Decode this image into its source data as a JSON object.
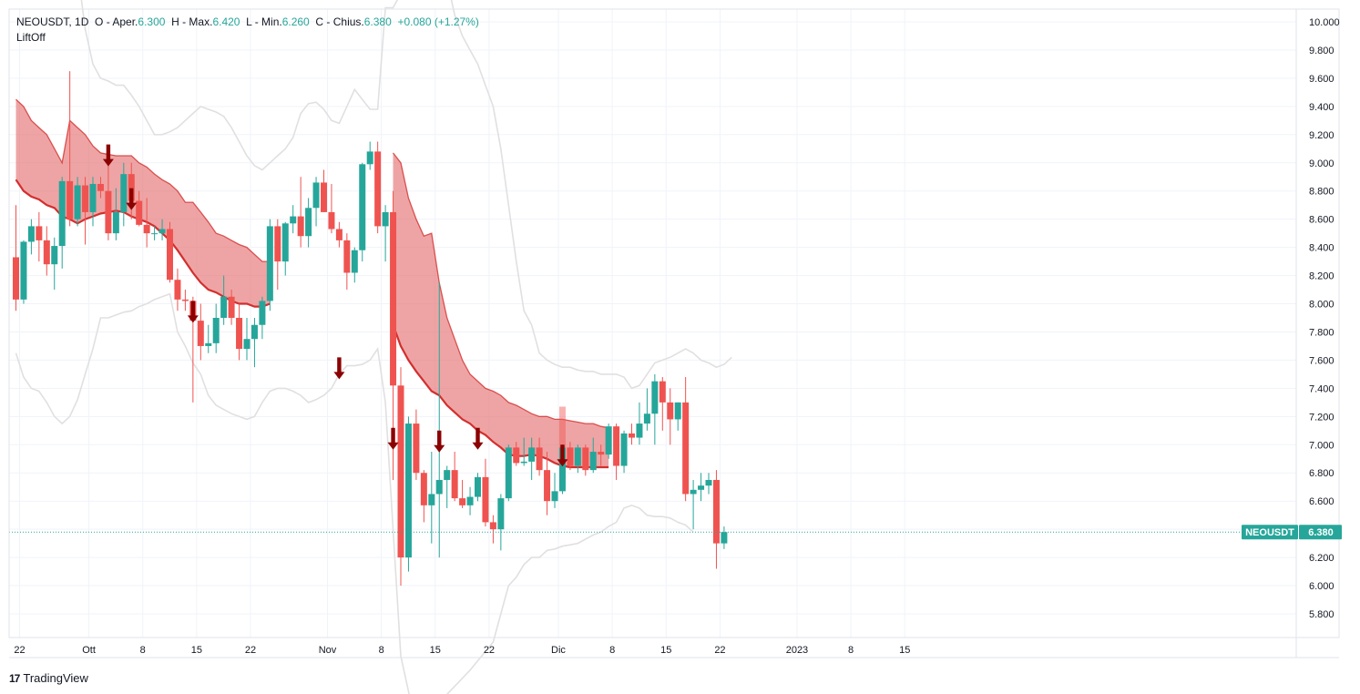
{
  "legend": {
    "symbol": "NEOUSDT",
    "interval": "1D",
    "open_label": "O - Aper.",
    "open": "6.300",
    "high_label": "H - Max.",
    "high": "6.420",
    "low_label": "L - Min.",
    "low": "6.260",
    "close_label": "C - Chius.",
    "close": "6.380",
    "change": "+0.080 (+1.27%)"
  },
  "indicator_name": "LiftOff",
  "footer": {
    "logo": "17",
    "brand": "TradingView"
  },
  "price_tag": {
    "symbol": "NEOUSDT",
    "value": "6.380"
  },
  "colors": {
    "up": "#26a69a",
    "down": "#ef5350",
    "band_fill": "#e57373",
    "band_line": "#d32f2f",
    "arrow": "#8b0000",
    "envelope": "#e0e0e0"
  },
  "chart_data": {
    "type": "candlestick",
    "ylim": [
      5.7,
      10.1
    ],
    "y_ticks": [
      "10.000",
      "9.800",
      "9.600",
      "9.400",
      "9.200",
      "9.000",
      "8.800",
      "8.600",
      "8.400",
      "8.200",
      "8.000",
      "7.800",
      "7.600",
      "7.400",
      "7.200",
      "7.000",
      "6.800",
      "6.600",
      "6.400",
      "6.200",
      "6.000",
      "5.800"
    ],
    "x_ticks": [
      {
        "label": "22",
        "i": 0
      },
      {
        "label": "Ott",
        "i": 9
      },
      {
        "label": "8",
        "i": 16
      },
      {
        "label": "15",
        "i": 23
      },
      {
        "label": "22",
        "i": 30
      },
      {
        "label": "Nov",
        "i": 40
      },
      {
        "label": "8",
        "i": 47
      },
      {
        "label": "15",
        "i": 54
      },
      {
        "label": "22",
        "i": 61
      },
      {
        "label": "Dic",
        "i": 70
      },
      {
        "label": "8",
        "i": 77
      },
      {
        "label": "15",
        "i": 84
      },
      {
        "label": "22",
        "i": 91
      },
      {
        "label": "2023",
        "i": 101
      },
      {
        "label": "8",
        "i": 108
      },
      {
        "label": "15",
        "i": 115
      }
    ],
    "candles": [
      [
        8.33,
        8.7,
        7.95,
        8.03
      ],
      [
        8.03,
        8.45,
        8.0,
        8.44
      ],
      [
        8.44,
        8.6,
        8.35,
        8.55
      ],
      [
        8.55,
        8.65,
        8.3,
        8.45
      ],
      [
        8.45,
        8.55,
        8.2,
        8.28
      ],
      [
        8.28,
        8.47,
        8.1,
        8.41
      ],
      [
        8.41,
        8.9,
        8.25,
        8.87
      ],
      [
        8.87,
        9.65,
        8.55,
        8.6
      ],
      [
        8.6,
        8.9,
        8.55,
        8.84
      ],
      [
        8.84,
        8.9,
        8.42,
        8.65
      ],
      [
        8.65,
        8.9,
        8.55,
        8.85
      ],
      [
        8.85,
        8.9,
        8.75,
        8.8
      ],
      [
        8.8,
        9.0,
        8.45,
        8.5
      ],
      [
        8.5,
        8.82,
        8.45,
        8.65
      ],
      [
        8.65,
        9.0,
        8.55,
        8.92
      ],
      [
        8.92,
        9.0,
        8.6,
        8.73
      ],
      [
        8.73,
        8.8,
        8.55,
        8.56
      ],
      [
        8.56,
        8.75,
        8.4,
        8.5
      ],
      [
        8.5,
        8.55,
        8.45,
        8.5
      ],
      [
        8.5,
        8.6,
        8.45,
        8.53
      ],
      [
        8.53,
        8.58,
        8.15,
        8.17
      ],
      [
        8.17,
        8.25,
        7.95,
        8.03
      ],
      [
        8.03,
        8.1,
        7.95,
        8.02
      ],
      [
        8.02,
        8.05,
        7.3,
        7.88
      ],
      [
        7.88,
        8.0,
        7.6,
        7.7
      ],
      [
        7.7,
        7.85,
        7.65,
        7.72
      ],
      [
        7.72,
        8.0,
        7.65,
        7.9
      ],
      [
        7.9,
        8.2,
        7.85,
        8.05
      ],
      [
        8.05,
        8.1,
        7.85,
        7.9
      ],
      [
        7.9,
        8.0,
        7.6,
        7.68
      ],
      [
        7.68,
        7.9,
        7.6,
        7.75
      ],
      [
        7.75,
        7.9,
        7.55,
        7.85
      ],
      [
        7.85,
        8.05,
        7.75,
        8.02
      ],
      [
        8.02,
        8.6,
        7.95,
        8.55
      ],
      [
        8.55,
        8.6,
        8.1,
        8.3
      ],
      [
        8.3,
        8.58,
        8.2,
        8.57
      ],
      [
        8.57,
        8.7,
        8.5,
        8.62
      ],
      [
        8.62,
        8.9,
        8.4,
        8.48
      ],
      [
        8.48,
        8.75,
        8.4,
        8.68
      ],
      [
        8.68,
        8.9,
        8.55,
        8.86
      ],
      [
        8.86,
        8.95,
        8.65,
        8.65
      ],
      [
        8.65,
        8.85,
        8.5,
        8.53
      ],
      [
        8.53,
        8.58,
        8.4,
        8.45
      ],
      [
        8.45,
        8.5,
        8.1,
        8.22
      ],
      [
        8.22,
        8.4,
        8.15,
        8.38
      ],
      [
        8.38,
        9.0,
        8.3,
        8.99
      ],
      [
        8.99,
        9.15,
        8.95,
        9.08
      ],
      [
        9.08,
        9.15,
        8.5,
        8.55
      ],
      [
        8.55,
        8.7,
        8.3,
        8.65
      ],
      [
        8.65,
        8.8,
        6.75,
        7.42
      ],
      [
        7.42,
        7.55,
        6.0,
        6.2
      ],
      [
        6.2,
        7.2,
        6.1,
        7.15
      ],
      [
        7.15,
        7.25,
        6.75,
        6.8
      ],
      [
        6.8,
        6.82,
        6.45,
        6.57
      ],
      [
        6.57,
        6.95,
        6.3,
        6.65
      ],
      [
        6.65,
        8.15,
        6.2,
        6.75
      ],
      [
        6.75,
        6.85,
        6.55,
        6.82
      ],
      [
        6.82,
        6.95,
        6.6,
        6.62
      ],
      [
        6.62,
        6.75,
        6.55,
        6.57
      ],
      [
        6.57,
        6.7,
        6.5,
        6.63
      ],
      [
        6.63,
        6.8,
        6.6,
        6.77
      ],
      [
        6.77,
        6.9,
        6.42,
        6.45
      ],
      [
        6.45,
        6.5,
        6.3,
        6.4
      ],
      [
        6.4,
        6.65,
        6.25,
        6.62
      ],
      [
        6.62,
        7.0,
        6.6,
        6.98
      ],
      [
        6.98,
        7.02,
        6.85,
        6.87
      ],
      [
        6.87,
        7.05,
        6.85,
        6.88
      ],
      [
        6.88,
        7.05,
        6.75,
        6.98
      ],
      [
        6.98,
        7.05,
        6.78,
        6.82
      ],
      [
        6.82,
        6.95,
        6.5,
        6.6
      ],
      [
        6.6,
        6.8,
        6.55,
        6.67
      ],
      [
        6.67,
        7.0,
        6.65,
        6.98
      ],
      [
        6.98,
        7.02,
        6.82,
        6.85
      ],
      [
        6.85,
        7.0,
        6.8,
        6.98
      ],
      [
        6.98,
        7.0,
        6.78,
        6.82
      ],
      [
        6.82,
        7.05,
        6.8,
        6.95
      ],
      [
        6.95,
        7.0,
        6.85,
        6.93
      ],
      [
        6.93,
        7.15,
        6.9,
        7.13
      ],
      [
        7.13,
        7.15,
        6.75,
        6.85
      ],
      [
        6.85,
        7.1,
        6.8,
        7.08
      ],
      [
        7.08,
        7.15,
        7.0,
        7.05
      ],
      [
        7.05,
        7.3,
        7.0,
        7.15
      ],
      [
        7.15,
        7.4,
        7.1,
        7.22
      ],
      [
        7.22,
        7.5,
        7.0,
        7.45
      ],
      [
        7.45,
        7.48,
        7.1,
        7.3
      ],
      [
        7.3,
        7.4,
        7.0,
        7.18
      ],
      [
        7.18,
        7.3,
        7.1,
        7.3
      ],
      [
        7.3,
        7.48,
        6.6,
        6.65
      ],
      [
        6.65,
        6.75,
        6.4,
        6.68
      ],
      [
        6.68,
        6.8,
        6.6,
        6.71
      ],
      [
        6.71,
        6.8,
        6.65,
        6.75
      ],
      [
        6.75,
        6.82,
        6.12,
        6.3
      ],
      [
        6.3,
        6.42,
        6.26,
        6.38
      ]
    ],
    "band": {
      "start": 0,
      "segments": [
        {
          "from": 0,
          "upper": [
            9.45,
            9.4,
            9.3,
            9.25,
            9.2,
            9.1,
            9.0,
            9.3,
            9.25,
            9.2,
            9.12,
            9.07,
            9.06,
            9.05,
            9.05,
            9.05,
            9.0,
            8.97,
            8.92,
            8.88,
            8.85,
            8.8,
            8.72,
            8.72,
            8.65,
            8.58,
            8.5,
            8.48,
            8.45,
            8.42,
            8.4,
            8.35,
            8.3,
            8.3
          ],
          "lower": [
            8.88,
            8.8,
            8.76,
            8.74,
            8.7,
            8.68,
            8.62,
            8.6,
            8.57,
            8.6,
            8.62,
            8.64,
            8.65,
            8.66,
            8.65,
            8.62,
            8.6,
            8.58,
            8.55,
            8.5,
            8.45,
            8.38,
            8.3,
            8.22,
            8.15,
            8.1,
            8.08,
            8.05,
            8.02,
            8.0,
            8.0,
            7.98,
            7.98,
            8.0
          ]
        },
        {
          "from": 49,
          "upper": [
            9.07,
            9.0,
            8.75,
            8.6,
            8.48,
            8.5,
            8.15,
            7.9,
            7.75,
            7.6,
            7.5,
            7.45,
            7.4,
            7.38,
            7.35,
            7.3,
            7.28,
            7.25,
            7.22,
            7.2,
            7.2,
            7.18,
            7.18,
            7.17,
            7.16,
            7.15,
            7.15,
            7.13,
            7.12
          ],
          "lower": [
            7.85,
            7.7,
            7.6,
            7.52,
            7.45,
            7.38,
            7.35,
            7.28,
            7.23,
            7.18,
            7.15,
            7.1,
            7.07,
            7.02,
            6.98,
            6.93,
            6.92,
            6.92,
            6.93,
            6.92,
            6.9,
            6.87,
            6.85,
            6.84,
            6.84,
            6.84,
            6.84,
            6.84,
            6.84
          ]
        }
      ]
    },
    "envelope": {
      "upper": [
        [
          0,
          10.3
        ],
        [
          7,
          10.8
        ],
        [
          9,
          9.95
        ],
        [
          10,
          9.7
        ],
        [
          11,
          9.6
        ],
        [
          12,
          9.58
        ],
        [
          13,
          9.55
        ],
        [
          14,
          9.55
        ],
        [
          15,
          9.48
        ],
        [
          16,
          9.4
        ],
        [
          17,
          9.3
        ],
        [
          18,
          9.2
        ],
        [
          19,
          9.2
        ],
        [
          20,
          9.22
        ],
        [
          21,
          9.25
        ],
        [
          22,
          9.3
        ],
        [
          23,
          9.35
        ],
        [
          24,
          9.4
        ],
        [
          25,
          9.38
        ],
        [
          26,
          9.36
        ],
        [
          27,
          9.33
        ],
        [
          28,
          9.25
        ],
        [
          29,
          9.15
        ],
        [
          30,
          9.05
        ],
        [
          31,
          8.98
        ],
        [
          32,
          8.95
        ],
        [
          33,
          9.0
        ],
        [
          34,
          9.05
        ],
        [
          35,
          9.1
        ],
        [
          36,
          9.18
        ],
        [
          37,
          9.35
        ],
        [
          38,
          9.42
        ],
        [
          39,
          9.43
        ],
        [
          40,
          9.38
        ],
        [
          41,
          9.3
        ],
        [
          42,
          9.28
        ],
        [
          43,
          9.4
        ],
        [
          44,
          9.52
        ],
        [
          45,
          9.45
        ],
        [
          46,
          9.38
        ],
        [
          47,
          9.38
        ],
        [
          48,
          10.1
        ],
        [
          49,
          10.1
        ],
        [
          50,
          10.2
        ],
        [
          51,
          10.7
        ],
        [
          56,
          10.3
        ],
        [
          57,
          10.05
        ],
        [
          58,
          9.9
        ],
        [
          59,
          9.8
        ],
        [
          60,
          9.7
        ],
        [
          61,
          9.55
        ],
        [
          62,
          9.4
        ],
        [
          63,
          9.1
        ],
        [
          64,
          8.7
        ],
        [
          65,
          8.3
        ],
        [
          66,
          7.95
        ],
        [
          67,
          7.85
        ],
        [
          68,
          7.65
        ],
        [
          69,
          7.6
        ],
        [
          70,
          7.57
        ],
        [
          71,
          7.55
        ],
        [
          72,
          7.55
        ],
        [
          73,
          7.53
        ],
        [
          74,
          7.52
        ],
        [
          75,
          7.52
        ],
        [
          76,
          7.5
        ],
        [
          77,
          7.5
        ],
        [
          78,
          7.5
        ],
        [
          79,
          7.48
        ],
        [
          80,
          7.4
        ],
        [
          81,
          7.42
        ],
        [
          82,
          7.5
        ],
        [
          83,
          7.58
        ],
        [
          84,
          7.6
        ],
        [
          85,
          7.62
        ],
        [
          86,
          7.65
        ],
        [
          87,
          7.68
        ],
        [
          88,
          7.65
        ],
        [
          89,
          7.6
        ],
        [
          90,
          7.58
        ],
        [
          91,
          7.55
        ],
        [
          92,
          7.57
        ],
        [
          93,
          7.62
        ]
      ],
      "lower": [
        [
          0,
          7.65
        ],
        [
          1,
          7.48
        ],
        [
          2,
          7.4
        ],
        [
          3,
          7.38
        ],
        [
          4,
          7.3
        ],
        [
          5,
          7.2
        ],
        [
          6,
          7.15
        ],
        [
          7,
          7.2
        ],
        [
          8,
          7.32
        ],
        [
          9,
          7.5
        ],
        [
          10,
          7.68
        ],
        [
          11,
          7.9
        ],
        [
          12,
          7.9
        ],
        [
          13,
          7.92
        ],
        [
          14,
          7.94
        ],
        [
          15,
          7.95
        ],
        [
          16,
          7.98
        ],
        [
          17,
          8.0
        ],
        [
          18,
          8.03
        ],
        [
          19,
          8.05
        ],
        [
          20,
          8.07
        ],
        [
          21,
          7.8
        ],
        [
          22,
          7.7
        ],
        [
          23,
          7.58
        ],
        [
          24,
          7.5
        ],
        [
          25,
          7.35
        ],
        [
          26,
          7.28
        ],
        [
          27,
          7.25
        ],
        [
          28,
          7.22
        ],
        [
          29,
          7.2
        ],
        [
          30,
          7.18
        ],
        [
          31,
          7.2
        ],
        [
          32,
          7.3
        ],
        [
          33,
          7.38
        ],
        [
          34,
          7.4
        ],
        [
          35,
          7.4
        ],
        [
          36,
          7.38
        ],
        [
          37,
          7.35
        ],
        [
          38,
          7.3
        ],
        [
          39,
          7.32
        ],
        [
          40,
          7.35
        ],
        [
          41,
          7.4
        ],
        [
          42,
          7.5
        ],
        [
          43,
          7.56
        ],
        [
          44,
          7.56
        ],
        [
          45,
          7.57
        ],
        [
          46,
          7.6
        ],
        [
          47,
          7.68
        ],
        [
          48,
          7.3
        ],
        [
          49,
          6.4
        ],
        [
          50,
          5.5
        ],
        [
          52,
          5.0
        ],
        [
          59,
          5.4
        ],
        [
          62,
          5.6
        ],
        [
          63,
          5.8
        ],
        [
          64,
          6.0
        ],
        [
          65,
          6.06
        ],
        [
          66,
          6.15
        ],
        [
          67,
          6.2
        ],
        [
          68,
          6.2
        ],
        [
          69,
          6.25
        ],
        [
          70,
          6.26
        ],
        [
          71,
          6.28
        ],
        [
          72,
          6.29
        ],
        [
          73,
          6.3
        ],
        [
          74,
          6.33
        ],
        [
          75,
          6.36
        ],
        [
          76,
          6.38
        ],
        [
          77,
          6.42
        ],
        [
          78,
          6.45
        ],
        [
          79,
          6.55
        ],
        [
          80,
          6.57
        ],
        [
          81,
          6.55
        ],
        [
          82,
          6.5
        ],
        [
          83,
          6.49
        ],
        [
          84,
          6.49
        ],
        [
          85,
          6.48
        ],
        [
          86,
          6.45
        ],
        [
          87,
          6.43
        ],
        [
          88,
          6.38
        ]
      ]
    },
    "arrows": [
      {
        "i": 12,
        "p": 9.13
      },
      {
        "i": 15,
        "p": 8.82
      },
      {
        "i": 23,
        "p": 8.02
      },
      {
        "i": 42,
        "p": 7.62
      },
      {
        "i": 49,
        "p": 7.12
      },
      {
        "i": 55,
        "p": 7.1
      },
      {
        "i": 60,
        "p": 7.12
      },
      {
        "i": 71,
        "p": 7.0
      }
    ],
    "hover_candle": {
      "i": 71,
      "top": 7.27,
      "bottom": 6.75
    }
  }
}
